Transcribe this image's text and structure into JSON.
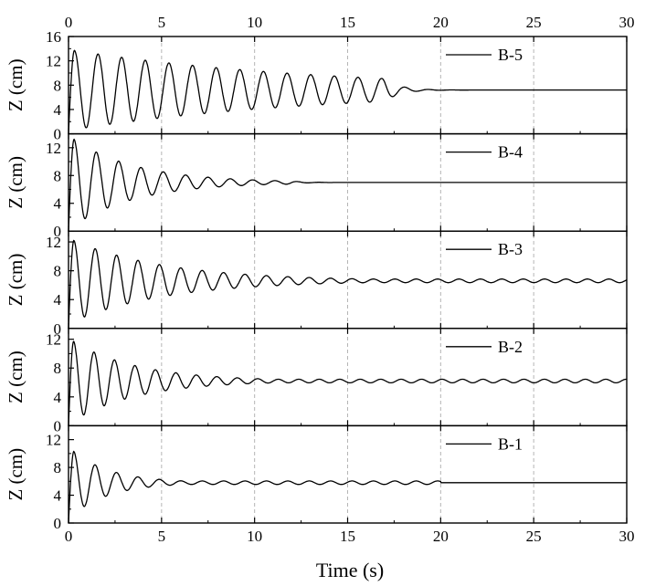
{
  "chart_data": {
    "type": "line",
    "title": "",
    "xlabel": "Time (s)",
    "xlim": [
      0,
      30
    ],
    "x_ticks": [
      0,
      5,
      10,
      15,
      20,
      25,
      30
    ],
    "top_x_ticks": [
      0,
      5,
      10,
      15,
      20,
      25,
      30
    ],
    "grid": "vertical dashed at x ticks",
    "legend_position": "top-right of each panel",
    "panels": [
      {
        "series_name": "B-5",
        "ylabel": "Z (cm)",
        "ylim": [
          0,
          16
        ],
        "y_ticks": [
          0,
          4,
          8,
          12,
          16
        ],
        "y_final": 7.2,
        "first_peak": 13.7,
        "first_trough": 1.0,
        "period_s": 1.27,
        "settle_time_s": 17
      },
      {
        "series_name": "B-4",
        "ylabel": "Z (cm)",
        "ylim": [
          0,
          14
        ],
        "y_ticks": [
          0,
          4,
          8,
          12
        ],
        "y_final": 7.0,
        "first_peak": 13.2,
        "first_trough": 1.8,
        "period_s": 1.2,
        "settle_time_s": 12
      },
      {
        "series_name": "B-3",
        "ylabel": "Z (cm)",
        "ylim": [
          0,
          13.5
        ],
        "y_ticks": [
          0,
          4,
          8,
          12
        ],
        "y_final": 6.6,
        "first_peak": 12.2,
        "first_trough": 1.6,
        "period_s": 1.15,
        "settle_time_s": 30
      },
      {
        "series_name": "B-2",
        "ylabel": "Z (cm)",
        "ylim": [
          0,
          13.5
        ],
        "y_ticks": [
          0,
          4,
          8,
          12
        ],
        "y_final": 6.2,
        "first_peak": 11.7,
        "first_trough": 1.5,
        "period_s": 1.1,
        "settle_time_s": 30
      },
      {
        "series_name": "B-1",
        "ylabel": "Z (cm)",
        "ylim": [
          0,
          14
        ],
        "y_ticks": [
          0,
          4,
          8,
          12
        ],
        "y_final": 5.8,
        "first_peak": 10.3,
        "first_trough": 2.4,
        "period_s": 1.15,
        "settle_time_s": 20
      }
    ]
  }
}
